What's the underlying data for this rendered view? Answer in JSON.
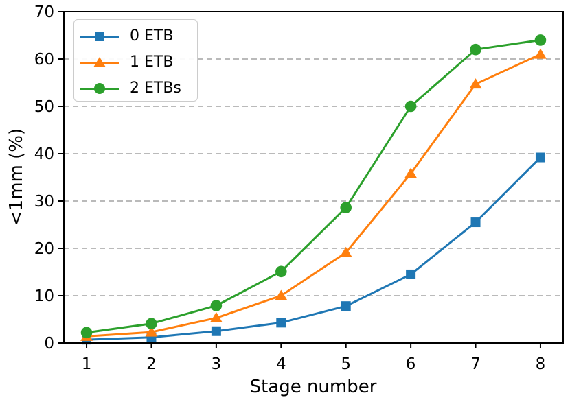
{
  "chart_data": {
    "type": "line",
    "title": "",
    "xlabel": "Stage number",
    "ylabel": "<1mm (%)",
    "x": [
      1,
      2,
      3,
      4,
      5,
      6,
      7,
      8
    ],
    "xticks": [
      1,
      2,
      3,
      4,
      5,
      6,
      7,
      8
    ],
    "yticks": [
      0,
      10,
      20,
      30,
      40,
      50,
      60,
      70
    ],
    "xlim": [
      0.65,
      8.35
    ],
    "ylim": [
      0,
      70
    ],
    "grid": {
      "axis": "y",
      "style": "dashed",
      "color": "#b0b0b0"
    },
    "legend": {
      "position": "upper-left"
    },
    "series": [
      {
        "name": "0 ETB",
        "color": "#1f77b4",
        "marker": "square",
        "values": [
          0.7,
          1.2,
          2.5,
          4.3,
          7.8,
          14.5,
          25.5,
          39.2
        ]
      },
      {
        "name": "1 ETB",
        "color": "#ff7f0e",
        "marker": "triangle",
        "values": [
          1.4,
          2.3,
          5.3,
          10.0,
          19.1,
          35.8,
          54.7,
          61.0
        ]
      },
      {
        "name": "2 ETBs",
        "color": "#2ca02c",
        "marker": "circle",
        "values": [
          2.2,
          4.1,
          7.9,
          15.1,
          28.6,
          50.0,
          62.0,
          64.0
        ]
      }
    ],
    "axis_color": "#000000",
    "tick_label_color": "#000000"
  }
}
